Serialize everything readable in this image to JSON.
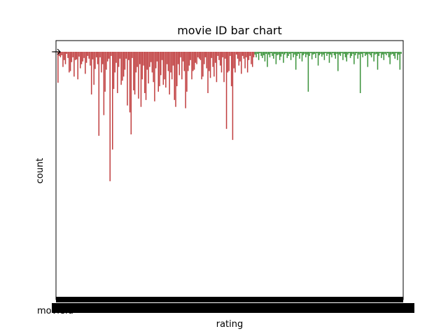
{
  "chart_data": {
    "type": "bar",
    "title": "movie ID bar chart",
    "xlabel": "rating",
    "ylabel": "count",
    "first_tick_label": "movieId",
    "y_direction": "inverted",
    "grid": false,
    "legend": "none",
    "colors": {
      "primary": "#c03d3e",
      "secondary": "#3a923a",
      "axis": "#000000",
      "background": "#ffffff"
    },
    "series": [
      {
        "values": [
          45,
          6,
          8,
          5,
          22,
          12,
          18,
          3,
          9,
          30,
          28,
          15,
          8,
          36,
          12,
          11,
          40,
          7,
          24,
          18,
          14,
          9,
          32,
          16,
          6,
          10,
          20,
          62,
          11,
          48,
          25,
          8,
          18,
          122,
          8,
          30,
          18,
          92,
          58,
          26,
          14,
          10,
          188,
          6,
          142,
          54,
          30,
          16,
          60,
          22,
          10,
          48,
          42,
          36,
          26,
          10,
          78,
          12,
          88,
          120,
          9,
          56,
          62,
          30,
          22,
          68,
          18,
          80,
          40,
          20,
          60,
          70,
          26,
          46,
          22,
          15,
          30,
          44,
          72,
          24,
          14,
          58,
          50,
          34,
          12,
          48,
          40,
          52,
          18,
          28,
          62,
          30,
          40,
          20,
          70,
          80,
          50,
          18,
          34,
          8,
          40,
          14,
          28,
          82,
          58,
          28,
          20,
          12,
          40,
          28,
          26,
          16,
          18,
          8,
          10,
          12,
          40,
          36,
          18,
          8,
          24,
          60,
          28,
          38,
          9,
          22,
          36,
          16,
          44,
          6,
          12,
          20,
          30,
          8,
          44,
          10,
          112,
          30,
          28,
          6,
          50,
          128,
          24,
          30,
          4,
          10,
          20,
          14,
          32,
          6,
          10,
          24,
          8,
          30,
          12,
          6,
          18,
          22,
          8
        ]
      },
      {
        "values": [
          4,
          8,
          3,
          12,
          2,
          6,
          9,
          5,
          14,
          3,
          22,
          4,
          8,
          2,
          6,
          10,
          3,
          18,
          5,
          4,
          12,
          7,
          3,
          16,
          4,
          2,
          9,
          6,
          3,
          12,
          2,
          8,
          4,
          26,
          6,
          3,
          10,
          2,
          14,
          5,
          3,
          8,
          4,
          58,
          6,
          2,
          11,
          4,
          3,
          9,
          2,
          20,
          5,
          3,
          7,
          4,
          12,
          2,
          6,
          3,
          16,
          4,
          8,
          2,
          5,
          10,
          3,
          28,
          4,
          6,
          2,
          12,
          3,
          8,
          14,
          4,
          2,
          9,
          6,
          3,
          18,
          5,
          2,
          10,
          4,
          60,
          3,
          8,
          2,
          6,
          4,
          22,
          3,
          5,
          8,
          2,
          14,
          4,
          3,
          26,
          6,
          2,
          9,
          4,
          12,
          3,
          5,
          2,
          8,
          18,
          4,
          3,
          6,
          10,
          2,
          12,
          4,
          26,
          3
        ]
      }
    ],
    "ylim": [
      0,
      360
    ]
  }
}
